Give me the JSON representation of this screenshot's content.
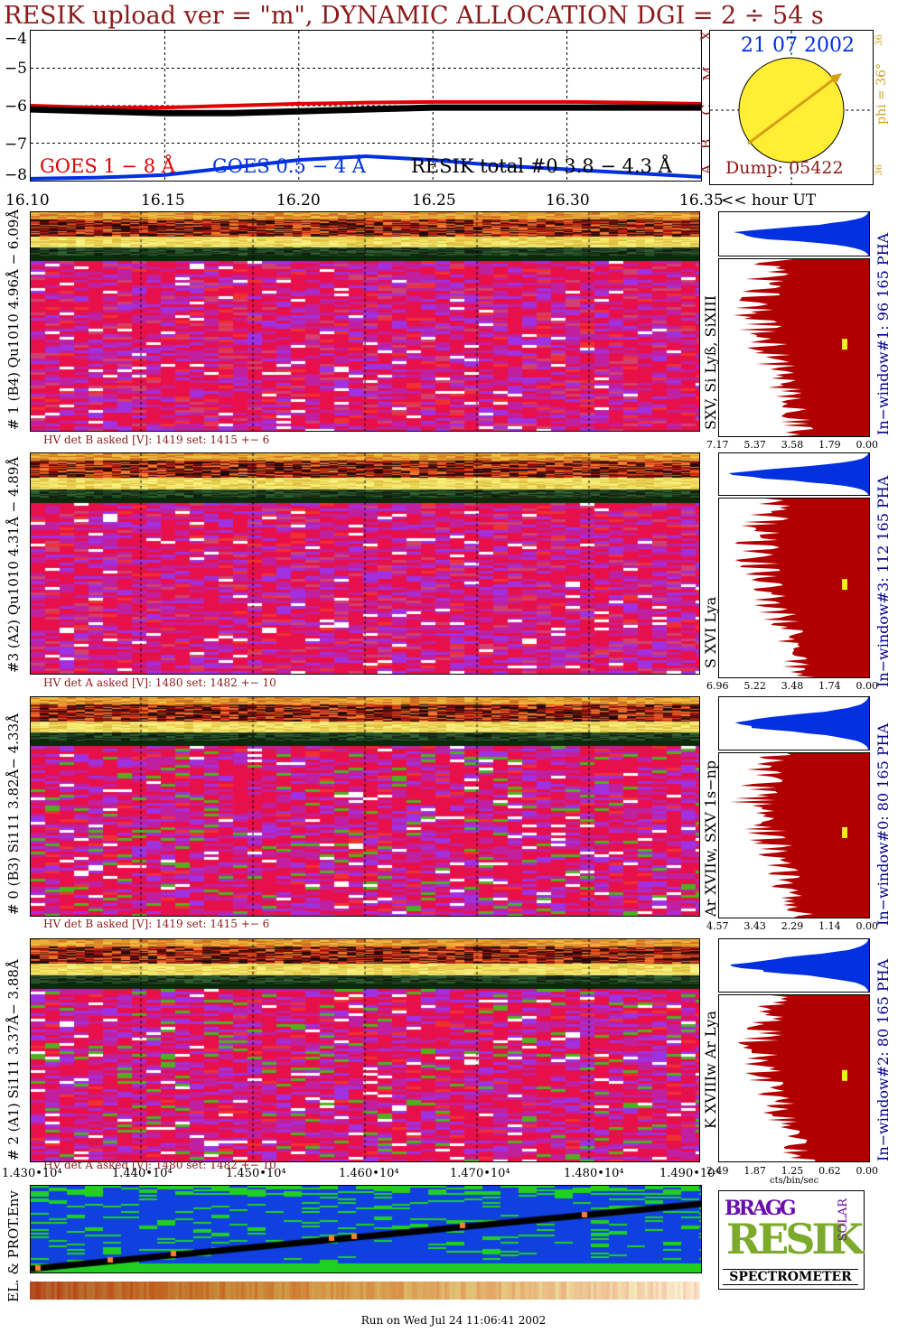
{
  "header": {
    "title": "RESIK upload ver = \"m\", DYNAMIC ALLOCATION  DGI =   2 ÷  54 s"
  },
  "goes": {
    "yticks": [
      "−4",
      "−5",
      "−6",
      "−7",
      "−8"
    ],
    "legend": [
      "GOES 1 − 8 Å",
      "GOES 0.5 − 4 Å",
      "RESIK total #0  3.8 − 4.3 Å"
    ],
    "class_letters": [
      "A",
      "B",
      "C",
      "M",
      "X"
    ],
    "colors": {
      "goes_long": "#e00000",
      "goes_short": "#0030e0",
      "resik": "#000000"
    }
  },
  "sun": {
    "date": "21 07 2002",
    "phi_label": "phi = 36°",
    "phi_small_top": "36",
    "phi_small_bottom": "36",
    "dump": "Dump: 05422"
  },
  "time_axis": {
    "ticks": [
      "16.10",
      "16.15",
      "16.20",
      "16.25",
      "16.30",
      "16.35"
    ],
    "unit": "<< hour UT"
  },
  "channels": [
    {
      "left_label": "# 1 (B4) Qu1010 4.96Å − 6.09Å",
      "mid_label": "SXV, Si Lyß, SiXIII",
      "right_label": "In−window#1:   96 165  PHA",
      "hv": "HV det B asked [V]:  1419 set:  1415  +−    6",
      "hist_ticks": [
        "7.17",
        "5.37",
        "3.58",
        "1.79",
        "0.00"
      ]
    },
    {
      "left_label": "#3 (A2) Qu1010  4.31Å − 4.89Å",
      "mid_label": "S XVI Lya",
      "right_label": "In−window#3:  112 165  PHA",
      "hv": "HV det A asked [V]:  1480 set:  1482  +−    10",
      "hist_ticks": [
        "6.96",
        "5.22",
        "3.48",
        "1.74",
        "0.00"
      ]
    },
    {
      "left_label": "# 0 (B3) Si111  3.82Å− 4.33Å",
      "mid_label": "Ar XVIIw, SXV 1s−np",
      "right_label": "In−window#0:   80 165  PHA",
      "hv": "HV det B asked [V]:  1419 set:  1415  +−    6",
      "hist_ticks": [
        "4.57",
        "3.43",
        "2.29",
        "1.14",
        "0.00"
      ]
    },
    {
      "left_label": "# 2 (A1) Si111  3.37Å− 3.88Å",
      "mid_label": "K XVIIIw  Ar Lya",
      "right_label": "In−window#2:   80 165  PHA",
      "hv": "HV det A asked [V]:  1480 set:  1482  +−    10",
      "hist_ticks": [
        "2.49",
        "1.87",
        "1.25",
        "0.62",
        "0.00"
      ]
    }
  ],
  "hist_xlabel": "cts/bin/sec",
  "seconds_axis": {
    "ticks": [
      "1.430•10⁴",
      "1.440•10⁴",
      "1.450•10⁴",
      "1.460•10⁴",
      "1.470•10⁴",
      "1.480•10⁴",
      "1.490•10⁴"
    ]
  },
  "env": {
    "label": "EL. & PROT.Env"
  },
  "logo": {
    "bragg": "BRAGG",
    "resik": "RESIK",
    "solar": "SOLAR",
    "spectrometer": "SPECTROMETER"
  },
  "footer": "Run on Wed Jul 24 11:06:41 2002",
  "chart_data": [
    {
      "type": "line",
      "title": "RESIK upload ver = \"m\", DYNAMIC ALLOCATION  DGI =   2 ÷  54 s",
      "x": [
        16.1,
        16.125,
        16.15,
        16.175,
        16.2,
        16.225,
        16.25,
        16.275,
        16.3,
        16.325,
        16.35
      ],
      "xlabel": "<< hour UT",
      "ylim": [
        -8,
        -4
      ],
      "grid": true,
      "series": [
        {
          "name": "GOES 1 − 8 Å",
          "values": [
            -6.0,
            -6.05,
            -6.05,
            -6.0,
            -5.95,
            -5.92,
            -5.9,
            -5.9,
            -5.9,
            -5.92,
            -5.95
          ]
        },
        {
          "name": "GOES 0.5 − 4 Å",
          "values": [
            -7.95,
            -7.92,
            -7.85,
            -7.65,
            -7.45,
            -7.35,
            -7.45,
            -7.6,
            -7.7,
            -7.8,
            -7.9
          ]
        },
        {
          "name": "RESIK total #0  3.8 − 4.3 Å",
          "values": [
            -6.1,
            -6.15,
            -6.2,
            -6.2,
            -6.15,
            -6.1,
            -6.05,
            -6.05,
            -6.05,
            -6.05,
            -6.05
          ]
        }
      ]
    }
  ]
}
